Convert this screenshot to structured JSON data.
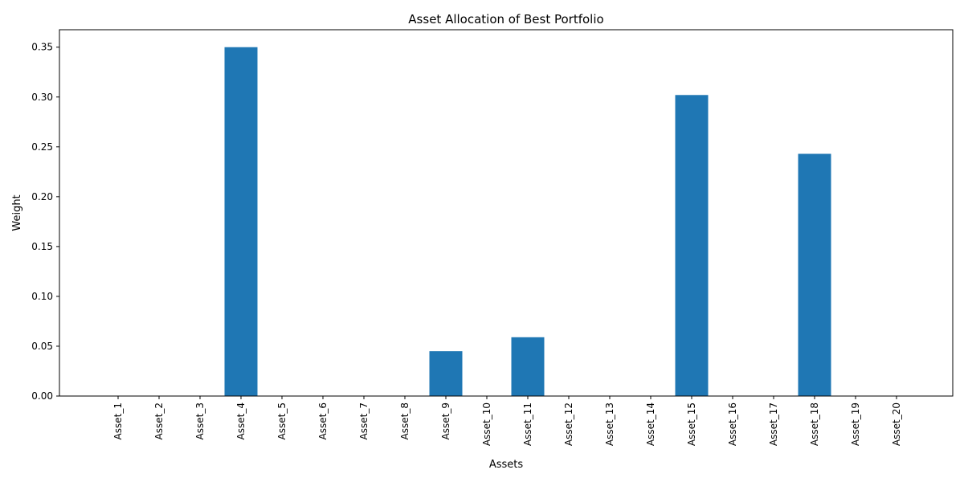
{
  "chart_data": {
    "type": "bar",
    "title": "Asset Allocation of Best Portfolio",
    "xlabel": "Assets",
    "ylabel": "Weight",
    "categories": [
      "Asset_1",
      "Asset_2",
      "Asset_3",
      "Asset_4",
      "Asset_5",
      "Asset_6",
      "Asset_7",
      "Asset_8",
      "Asset_9",
      "Asset_10",
      "Asset_11",
      "Asset_12",
      "Asset_13",
      "Asset_14",
      "Asset_15",
      "Asset_16",
      "Asset_17",
      "Asset_18",
      "Asset_19",
      "Asset_20"
    ],
    "values": [
      0,
      0,
      0,
      0.35,
      0,
      0,
      0,
      0,
      0.045,
      0,
      0.059,
      0,
      0,
      0,
      0.302,
      0,
      0,
      0.243,
      0,
      0
    ],
    "ylim": [
      0,
      0.3675
    ],
    "yticks": [
      "0.00",
      "0.05",
      "0.10",
      "0.15",
      "0.20",
      "0.25",
      "0.30",
      "0.35"
    ],
    "bar_color": "#1f77b4",
    "grid": false
  }
}
